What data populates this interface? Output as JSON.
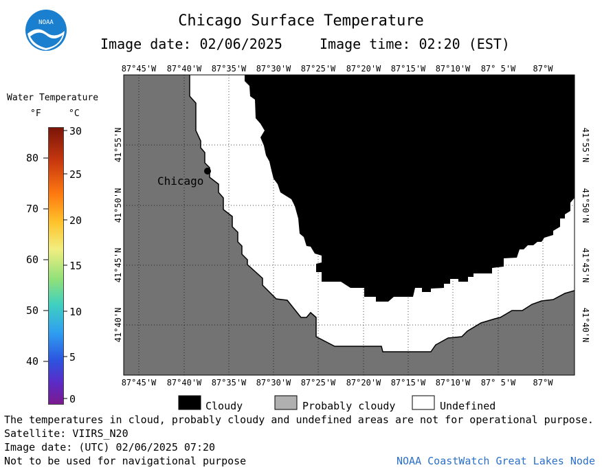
{
  "header": {
    "title": "Chicago Surface Temperature",
    "image_date": "Image date: 02/06/2025",
    "image_time": "Image time: 02:20 (EST)",
    "logo_text": "NOAA"
  },
  "colorbar": {
    "title": "Water Temperature",
    "unit_f": "°F",
    "unit_c": "°C",
    "f_ticks": [
      "80",
      "70",
      "60",
      "50",
      "40"
    ],
    "c_ticks": [
      "30",
      "25",
      "20",
      "15",
      "10",
      "5",
      "0"
    ]
  },
  "map": {
    "lon_labels": [
      "87°45'W",
      "87°40'W",
      "87°35'W",
      "87°30'W",
      "87°25'W",
      "87°20'W",
      "87°15'W",
      "87°10'W",
      "87° 5'W",
      "87°W"
    ],
    "lat_labels": [
      "41°55'N",
      "41°50'N",
      "41°45'N",
      "41°40'N"
    ],
    "city": "Chicago",
    "colors": {
      "land": "#737373",
      "cloudy": "#000000",
      "undefined": "#ffffff"
    }
  },
  "legend": {
    "cloudy": "Cloudy",
    "probably_cloudy": "Probably cloudy",
    "undefined": "Undefined"
  },
  "footer": {
    "disclaimer": "The temperatures in cloud, probably cloudy and undefined areas are not for operational purpose.",
    "satellite": "Satellite: VIIRS_N20",
    "utc_date": "Image date: (UTC) 02/06/2025  07:20",
    "nav_warning": "Not to be used for navigational purpose",
    "node": "NOAA CoastWatch Great Lakes Node"
  }
}
